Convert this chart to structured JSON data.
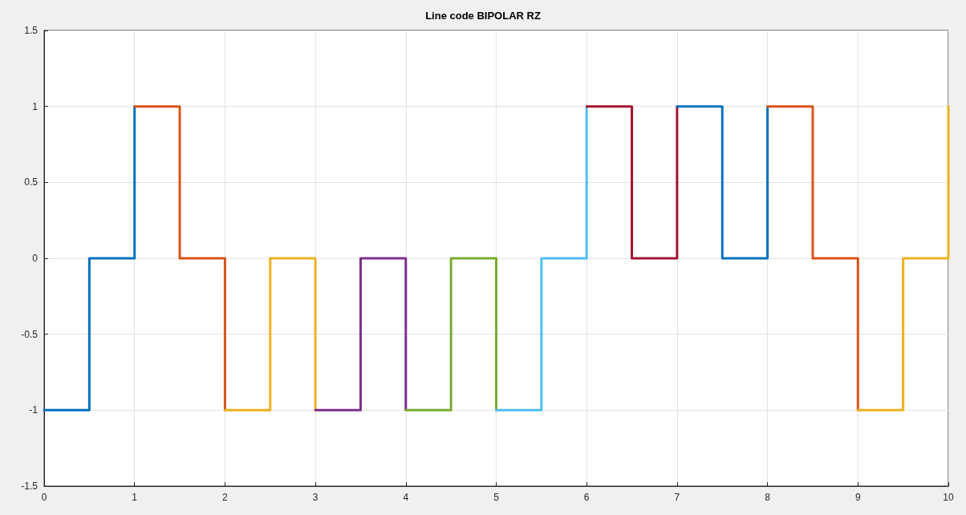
{
  "chart_data": {
    "type": "line",
    "title": "Line code BIPOLAR RZ",
    "series": [
      {
        "color": "#0072bd",
        "x": [
          0,
          0.5,
          0.5,
          1,
          1
        ],
        "values": [
          -1,
          -1,
          0,
          0,
          1
        ]
      },
      {
        "color": "#d95319",
        "x": [
          1,
          1.5,
          1.5,
          2,
          2
        ],
        "values": [
          1,
          1,
          0,
          0,
          -1
        ]
      },
      {
        "color": "#edb120",
        "x": [
          2,
          2.5,
          2.5,
          3,
          3
        ],
        "values": [
          -1,
          -1,
          0,
          0,
          -1
        ]
      },
      {
        "color": "#7e2f8e",
        "x": [
          3,
          3.5,
          3.5,
          4,
          4
        ],
        "values": [
          -1,
          -1,
          0,
          0,
          -1
        ]
      },
      {
        "color": "#77ac30",
        "x": [
          4,
          4.5,
          4.5,
          5,
          5
        ],
        "values": [
          -1,
          -1,
          0,
          0,
          -1
        ]
      },
      {
        "color": "#4dbeee",
        "x": [
          5,
          5.5,
          5.5,
          6,
          6
        ],
        "values": [
          -1,
          -1,
          0,
          0,
          1
        ]
      },
      {
        "color": "#a2142f",
        "x": [
          6,
          6.5,
          6.5,
          7,
          7
        ],
        "values": [
          1,
          1,
          0,
          0,
          1
        ]
      },
      {
        "color": "#0072bd",
        "x": [
          7,
          7.5,
          7.5,
          8,
          8
        ],
        "values": [
          1,
          1,
          0,
          0,
          1
        ]
      },
      {
        "color": "#d95319",
        "x": [
          8,
          8.5,
          8.5,
          9,
          9
        ],
        "values": [
          1,
          1,
          0,
          0,
          -1
        ]
      },
      {
        "color": "#edb120",
        "x": [
          9,
          9.5,
          9.5,
          10,
          10
        ],
        "values": [
          -1,
          -1,
          0,
          0,
          1
        ]
      }
    ],
    "xlim": [
      0,
      10
    ],
    "xticks": [
      0,
      1,
      2,
      3,
      4,
      5,
      6,
      7,
      8,
      9,
      10
    ],
    "ylim": [
      -1.5,
      1.5
    ],
    "yticks": [
      -1.5,
      -1,
      -0.5,
      0,
      0.5,
      1,
      1.5
    ],
    "grid": true
  }
}
